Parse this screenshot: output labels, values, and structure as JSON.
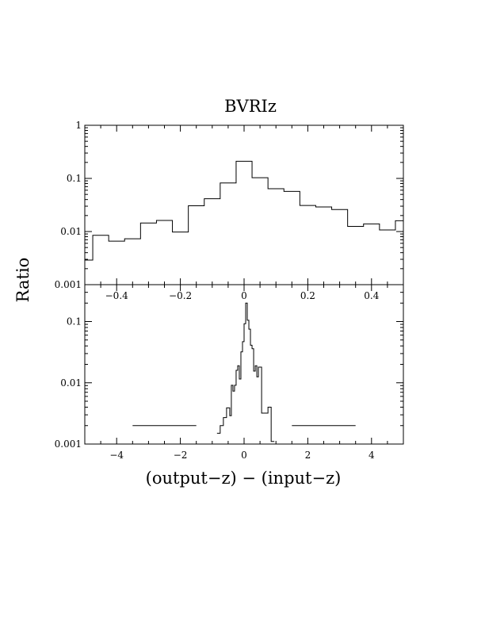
{
  "chart_data": [
    {
      "panel": "top",
      "type": "line",
      "step": true,
      "title": "BVRIz",
      "ylabel": "Ratio",
      "yscale": "log",
      "xlim": [
        -0.5,
        0.5
      ],
      "ylim": [
        0.001,
        1
      ],
      "xticks": [
        -0.4,
        -0.2,
        0,
        0.2,
        0.4
      ],
      "xtick_labels": [
        "−0.4",
        "−0.2",
        "0",
        "0.2",
        "0.4"
      ],
      "yticks": [
        0.001,
        0.01,
        0.1,
        1
      ],
      "ytick_labels": [
        "0.001",
        "0.01",
        "0.1",
        "1"
      ],
      "bin_edges": [
        -0.5,
        -0.475,
        -0.425,
        -0.375,
        -0.325,
        -0.275,
        -0.225,
        -0.175,
        -0.125,
        -0.075,
        -0.025,
        0.025,
        0.075,
        0.125,
        0.175,
        0.225,
        0.275,
        0.325,
        0.375,
        0.425,
        0.475,
        0.5
      ],
      "values": [
        0.0029,
        0.0085,
        0.0066,
        0.0073,
        0.0145,
        0.0162,
        0.0098,
        0.0305,
        0.0415,
        0.082,
        0.21,
        0.103,
        0.064,
        0.057,
        0.031,
        0.029,
        0.026,
        0.0125,
        0.0139,
        0.0107,
        0.016
      ]
    },
    {
      "panel": "bottom",
      "type": "line",
      "step": true,
      "xlabel": "(output−z) − (input−z)",
      "yscale": "log",
      "xlim": [
        -5,
        5
      ],
      "ylim": [
        0.001,
        0.4
      ],
      "xticks": [
        -4,
        -2,
        0,
        2,
        4
      ],
      "xtick_labels": [
        "−4",
        "−2",
        "0",
        "2",
        "4"
      ],
      "yticks": [
        0.001,
        0.01,
        0.1
      ],
      "ytick_labels": [
        "0.001",
        "0.01",
        "0.1"
      ],
      "segments": [
        {
          "x": [
            -3.5,
            -1.5
          ],
          "bin_edges": [
            -3.5,
            -1.5
          ],
          "values": [
            0.002
          ]
        },
        {
          "bin_edges": [
            -0.85,
            -0.75,
            -0.65,
            -0.55,
            -0.45,
            -0.4,
            -0.35,
            -0.3,
            -0.25,
            -0.2,
            -0.15,
            -0.1,
            -0.05,
            0,
            0.05,
            0.1,
            0.15,
            0.2,
            0.25,
            0.3,
            0.35,
            0.4,
            0.45,
            0.55,
            0.65,
            0.75,
            0.85,
            0.95
          ],
          "values": [
            0.0015,
            0.002,
            0.0027,
            0.0039,
            0.0029,
            0.0091,
            0.0073,
            0.0091,
            0.016,
            0.019,
            0.0115,
            0.032,
            0.047,
            0.092,
            0.2,
            0.105,
            0.075,
            0.041,
            0.036,
            0.0155,
            0.019,
            0.0125,
            0.018,
            0.0032,
            0.0032,
            0.004,
            0.0011
          ]
        },
        {
          "x": [
            1.5,
            3.5
          ],
          "bin_edges": [
            1.5,
            3.5
          ],
          "values": [
            0.002
          ]
        }
      ]
    }
  ]
}
